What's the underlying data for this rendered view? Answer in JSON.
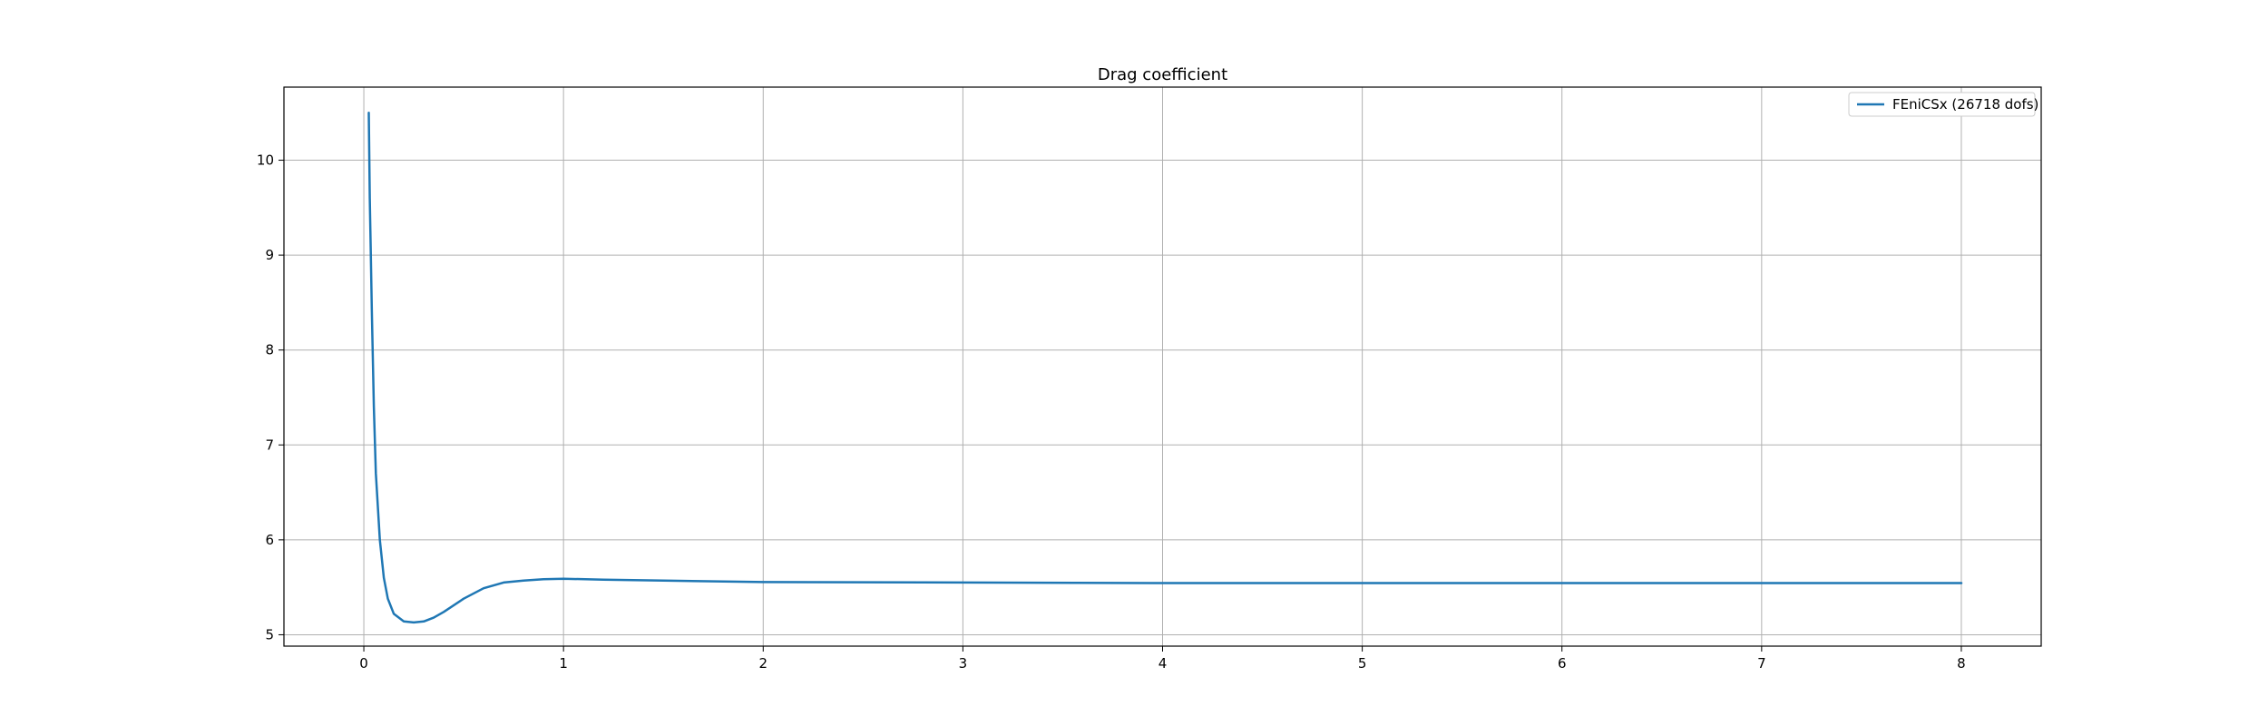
{
  "chart_data": {
    "type": "line",
    "title": "Drag coefficient",
    "xlabel": "",
    "ylabel": "",
    "xlim": [
      -0.4,
      8.4
    ],
    "ylim": [
      4.88,
      10.77
    ],
    "xticks": [
      0,
      1,
      2,
      3,
      4,
      5,
      6,
      7,
      8
    ],
    "yticks": [
      5,
      6,
      7,
      8,
      9,
      10
    ],
    "grid": true,
    "legend_position": "top-right",
    "series": [
      {
        "name": "FEniCSx  (26718 dofs)",
        "color": "#1f77b4",
        "x": [
          0.025,
          0.03,
          0.04,
          0.05,
          0.06,
          0.08,
          0.1,
          0.12,
          0.15,
          0.2,
          0.25,
          0.3,
          0.35,
          0.4,
          0.5,
          0.6,
          0.7,
          0.8,
          0.9,
          1.0,
          1.2,
          1.5,
          2.0,
          3.0,
          4.0,
          5.0,
          6.0,
          7.0,
          8.0
        ],
        "y": [
          10.5,
          9.6,
          8.4,
          7.4,
          6.7,
          6.0,
          5.6,
          5.38,
          5.22,
          5.14,
          5.13,
          5.14,
          5.18,
          5.24,
          5.38,
          5.49,
          5.55,
          5.57,
          5.585,
          5.59,
          5.58,
          5.57,
          5.555,
          5.55,
          5.545,
          5.545,
          5.545,
          5.545,
          5.545
        ]
      }
    ]
  }
}
